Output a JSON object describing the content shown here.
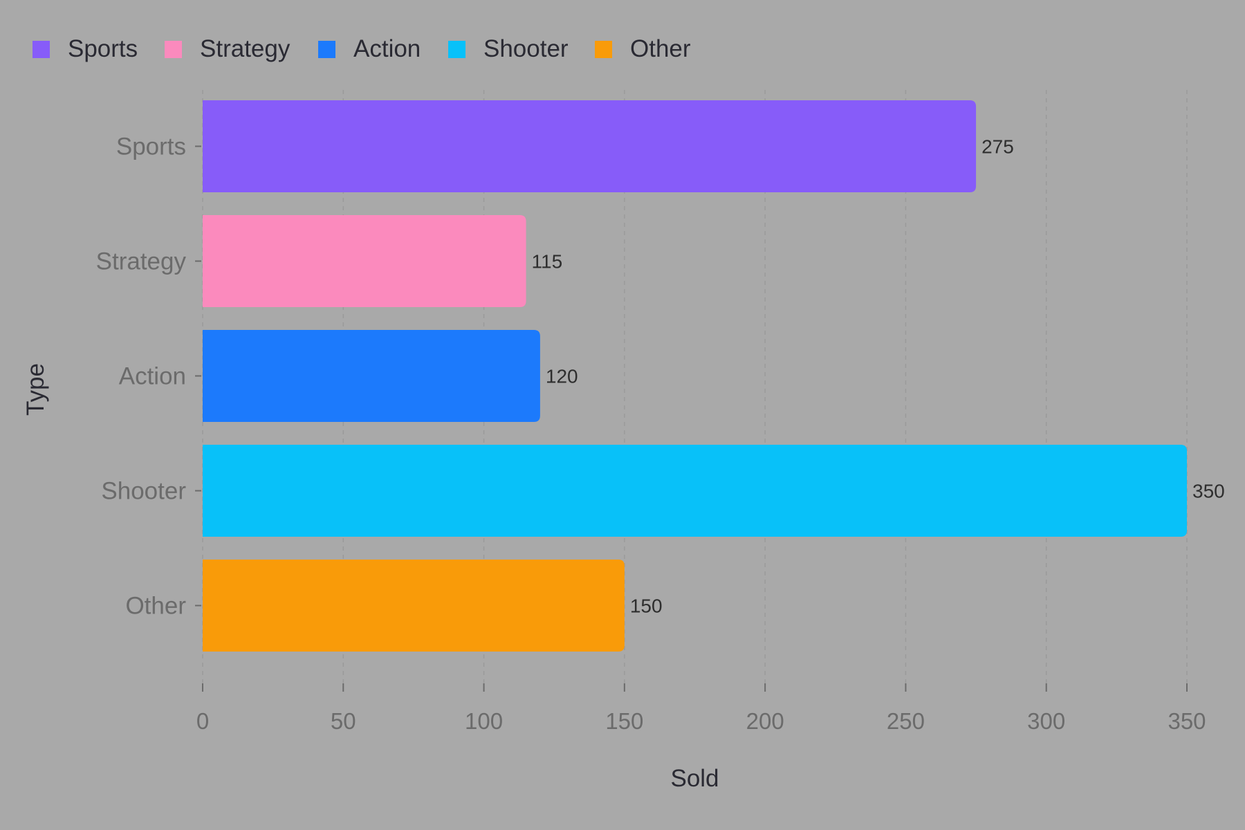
{
  "chart_data": {
    "type": "bar",
    "orientation": "horizontal",
    "categories": [
      "Sports",
      "Strategy",
      "Action",
      "Shooter",
      "Other"
    ],
    "values": [
      275,
      115,
      120,
      350,
      150
    ],
    "colors": [
      "#875cf9",
      "#fb8abd",
      "#1c7afc",
      "#08c1f9",
      "#f99b09"
    ],
    "xlabel": "Sold",
    "ylabel": "Type",
    "xlim": [
      0,
      350
    ],
    "xticks": [
      0,
      50,
      100,
      150,
      200,
      250,
      300,
      350
    ],
    "legend": {
      "position": "top-left",
      "entries": [
        "Sports",
        "Strategy",
        "Action",
        "Shooter",
        "Other"
      ]
    },
    "grid": "vertical dashed",
    "data_labels": true
  },
  "style": {
    "background": "#a9a9a9",
    "axis_text_color": "#6b6b6b",
    "label_text_color": "#2a2a33",
    "grid_color": "#9a9a9a"
  }
}
